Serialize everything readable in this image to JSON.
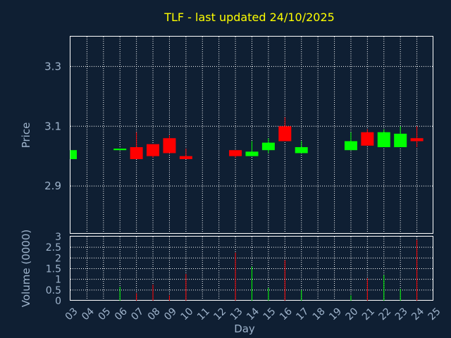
{
  "chart_data": [
    {
      "type": "candlestick",
      "title": "TLF - last updated 24/10/2025",
      "ylabel": "Price",
      "ylim": [
        2.74,
        3.4
      ],
      "yticks": [
        "2.9",
        "3.1",
        "3.3"
      ],
      "grid": true,
      "colors": {
        "up": "#00ff00",
        "down": "#ff0000",
        "grid": "#ffffff",
        "axis": "#9fb4cc"
      },
      "candles": [
        {
          "day": "03",
          "open": 2.99,
          "high": 3.02,
          "low": 2.99,
          "close": 3.02
        },
        {
          "day": "06",
          "open": 3.02,
          "high": 3.02,
          "low": 3.02,
          "close": 3.025
        },
        {
          "day": "07",
          "open": 3.03,
          "high": 3.08,
          "low": 2.99,
          "close": 2.99
        },
        {
          "day": "08",
          "open": 3.04,
          "high": 3.04,
          "low": 2.995,
          "close": 3.0
        },
        {
          "day": "09",
          "open": 3.06,
          "high": 3.07,
          "low": 3.01,
          "close": 3.01
        },
        {
          "day": "10",
          "open": 3.0,
          "high": 3.025,
          "low": 2.99,
          "close": 2.99
        },
        {
          "day": "13",
          "open": 3.02,
          "high": 3.02,
          "low": 2.995,
          "close": 3.0
        },
        {
          "day": "14",
          "open": 3.0,
          "high": 3.05,
          "low": 3.0,
          "close": 3.015
        },
        {
          "day": "15",
          "open": 3.02,
          "high": 3.06,
          "low": 3.01,
          "close": 3.045
        },
        {
          "day": "16",
          "open": 3.1,
          "high": 3.13,
          "low": 3.05,
          "close": 3.05
        },
        {
          "day": "17",
          "open": 3.01,
          "high": 3.05,
          "low": 3.01,
          "close": 3.03
        },
        {
          "day": "20",
          "open": 3.02,
          "high": 3.08,
          "low": 3.02,
          "close": 3.05
        },
        {
          "day": "21",
          "open": 3.08,
          "high": 3.09,
          "low": 3.035,
          "close": 3.035
        },
        {
          "day": "22",
          "open": 3.03,
          "high": 3.09,
          "low": 3.03,
          "close": 3.08
        },
        {
          "day": "23",
          "open": 3.03,
          "high": 3.1,
          "low": 3.03,
          "close": 3.075
        },
        {
          "day": "24",
          "open": 3.06,
          "high": 3.1,
          "low": 3.03,
          "close": 3.05
        }
      ]
    },
    {
      "type": "bar",
      "xlabel": "Day",
      "ylabel": "Volume (0000)",
      "ylim": [
        0,
        3
      ],
      "yticks": [
        "0",
        "0.5",
        "1",
        "1.5",
        "2",
        "2.5",
        "3"
      ],
      "categories": [
        "03",
        "04",
        "05",
        "06",
        "07",
        "08",
        "09",
        "10",
        "11",
        "12",
        "13",
        "14",
        "15",
        "16",
        "17",
        "18",
        "19",
        "20",
        "21",
        "22",
        "23",
        "24",
        "25"
      ],
      "values": [
        0,
        0,
        0,
        0.65,
        0.35,
        0.75,
        0.25,
        1.25,
        0,
        0,
        2.25,
        1.6,
        0.6,
        1.9,
        0.5,
        0,
        0,
        0.25,
        1.05,
        1.2,
        0.55,
        2.85,
        0
      ],
      "bar_colors": [
        "",
        "",
        "",
        "up",
        "down",
        "down",
        "down",
        "down",
        "",
        "",
        "down",
        "up",
        "up",
        "down",
        "up",
        "",
        "",
        "up",
        "down",
        "up",
        "up",
        "down",
        ""
      ]
    }
  ]
}
